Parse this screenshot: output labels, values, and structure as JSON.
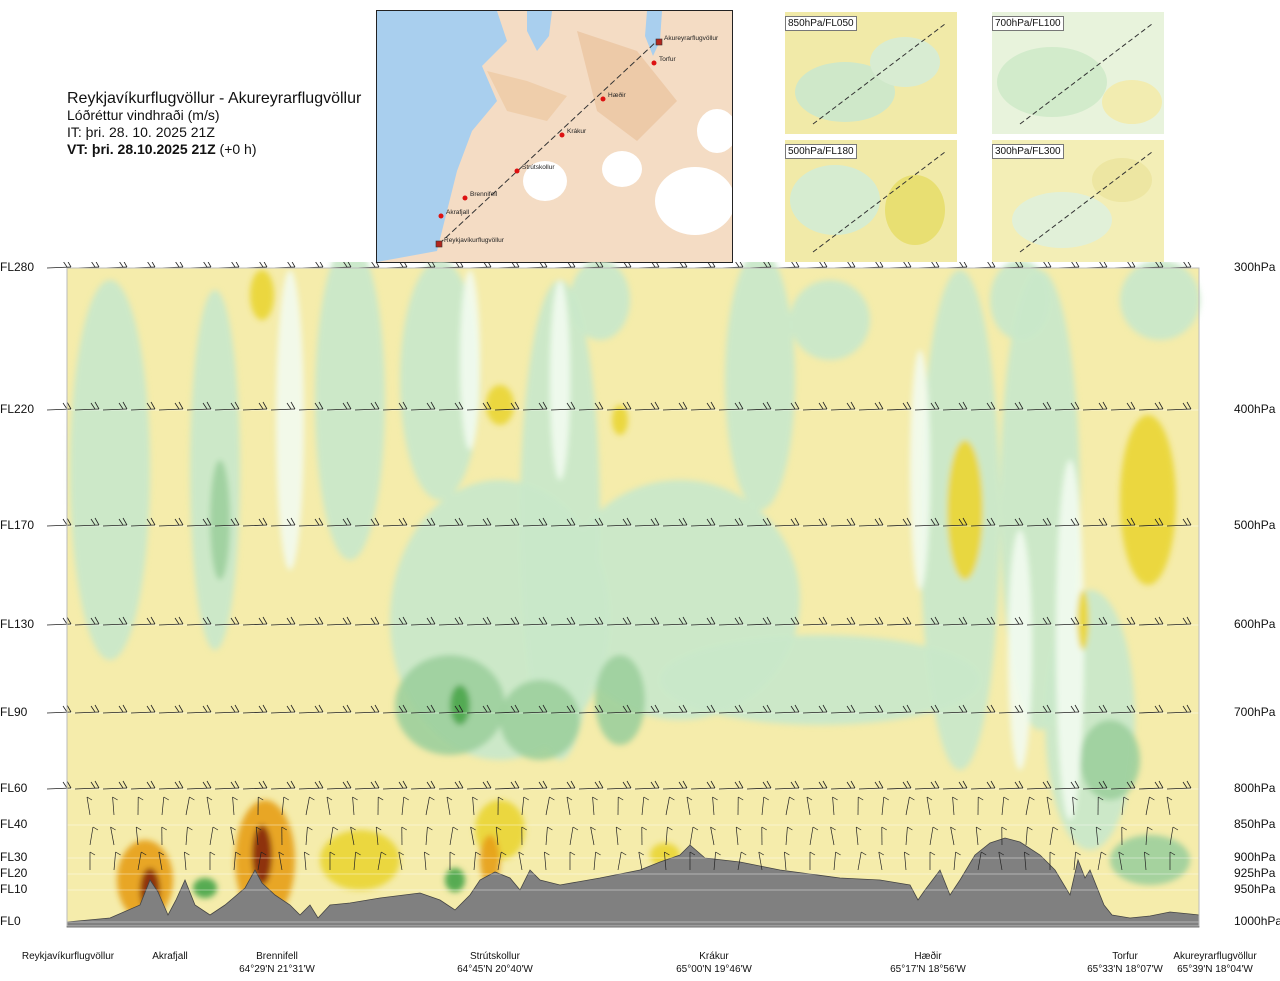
{
  "title": {
    "route": "Reykjavíkurflugvöllur - Akureyrarflugvöllur",
    "variable": "Lóðréttur vindhraði (m/s)",
    "issue_time": "IT: þri. 28. 10. 2025 21Z",
    "valid_time_bold": "VT: þri. 28.10.2025 21Z",
    "valid_time_offset": "(+0 h)"
  },
  "map": {
    "waypoints": [
      {
        "name": "Akureyrarflugvöllur"
      },
      {
        "name": "Torfur"
      },
      {
        "name": "Hæðir"
      },
      {
        "name": "Krákur"
      },
      {
        "name": "Strútskollur"
      },
      {
        "name": "Brennifell"
      },
      {
        "name": "Akrafjall"
      },
      {
        "name": "Reykjavíkurflugvöllur"
      }
    ]
  },
  "mini_maps": [
    {
      "label": "850hPa/FL050"
    },
    {
      "label": "700hPa/FL100"
    },
    {
      "label": "500hPa/FL180"
    },
    {
      "label": "300hPa/FL300"
    }
  ],
  "chart_data": {
    "type": "heatmap",
    "title": "Reykjavíkurflugvöllur - Akureyrarflugvöllur",
    "subtitle": "Lóðréttur vindhraði (m/s)",
    "levels_left": [
      "FL280",
      "FL220",
      "FL170",
      "FL130",
      "FL90",
      "FL60",
      "FL40",
      "FL30",
      "FL20",
      "FL10",
      "FL0"
    ],
    "levels_right": [
      "300hPa",
      "400hPa",
      "500hPa",
      "600hPa",
      "700hPa",
      "800hPa",
      "850hPa",
      "900hPa",
      "925hPa",
      "950hPa",
      "1000hPa"
    ],
    "waypoints": [
      {
        "name": "Reykjavíkurflugvöllur",
        "coord": ""
      },
      {
        "name": "Akrafjall",
        "coord": ""
      },
      {
        "name": "Brennifell",
        "coord": "64°29'N 21°31'W"
      },
      {
        "name": "Strútskollur",
        "coord": "64°45'N 20°40'W"
      },
      {
        "name": "Krákur",
        "coord": "65°00'N 19°46'W"
      },
      {
        "name": "Hæðir",
        "coord": "65°17'N 18°56'W"
      },
      {
        "name": "Torfur",
        "coord": "65°33'N 18°07'W"
      },
      {
        "name": "Akureyrarflugvöllur",
        "coord": "65°39'N 18°04'W"
      }
    ],
    "colors": {
      "sink_light": "#c9e8c9",
      "sink_mid": "#9ccf9c",
      "sink_strong": "#4ea84e",
      "rise_light": "#f5ecab",
      "rise_mid": "#ead63a",
      "rise_strong": "#e7a21c",
      "rise_extreme": "#8a2b10",
      "neutral": "#f2fbef",
      "terrain": "#808080"
    }
  }
}
